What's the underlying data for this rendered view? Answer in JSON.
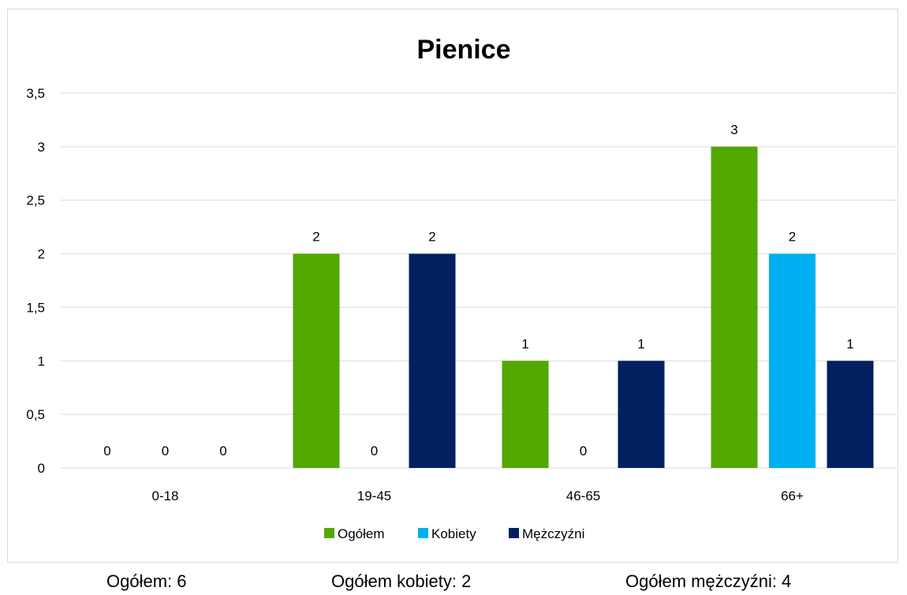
{
  "chart_data": {
    "type": "bar",
    "title": "Pienice",
    "categories": [
      "0-18",
      "19-45",
      "46-65",
      "66+"
    ],
    "series": [
      {
        "name": "Ogółem",
        "values": [
          0,
          2,
          1,
          3
        ],
        "color": "#53a800"
      },
      {
        "name": "Kobiety",
        "values": [
          0,
          0,
          0,
          2
        ],
        "color": "#00b0f0"
      },
      {
        "name": "Mężczyźni",
        "values": [
          0,
          2,
          1,
          1
        ],
        "color": "#002060"
      }
    ],
    "ylim": [
      0,
      3.5
    ],
    "yticks": [
      "0",
      "0,5",
      "1",
      "1,5",
      "2",
      "2,5",
      "3",
      "3,5"
    ],
    "grid": true,
    "legend": "bottom",
    "data_labels": true
  },
  "totals": {
    "all": "Ogółem: 6",
    "women": "Ogółem kobiety: 2",
    "men": "Ogółem mężczyźni: 4"
  }
}
